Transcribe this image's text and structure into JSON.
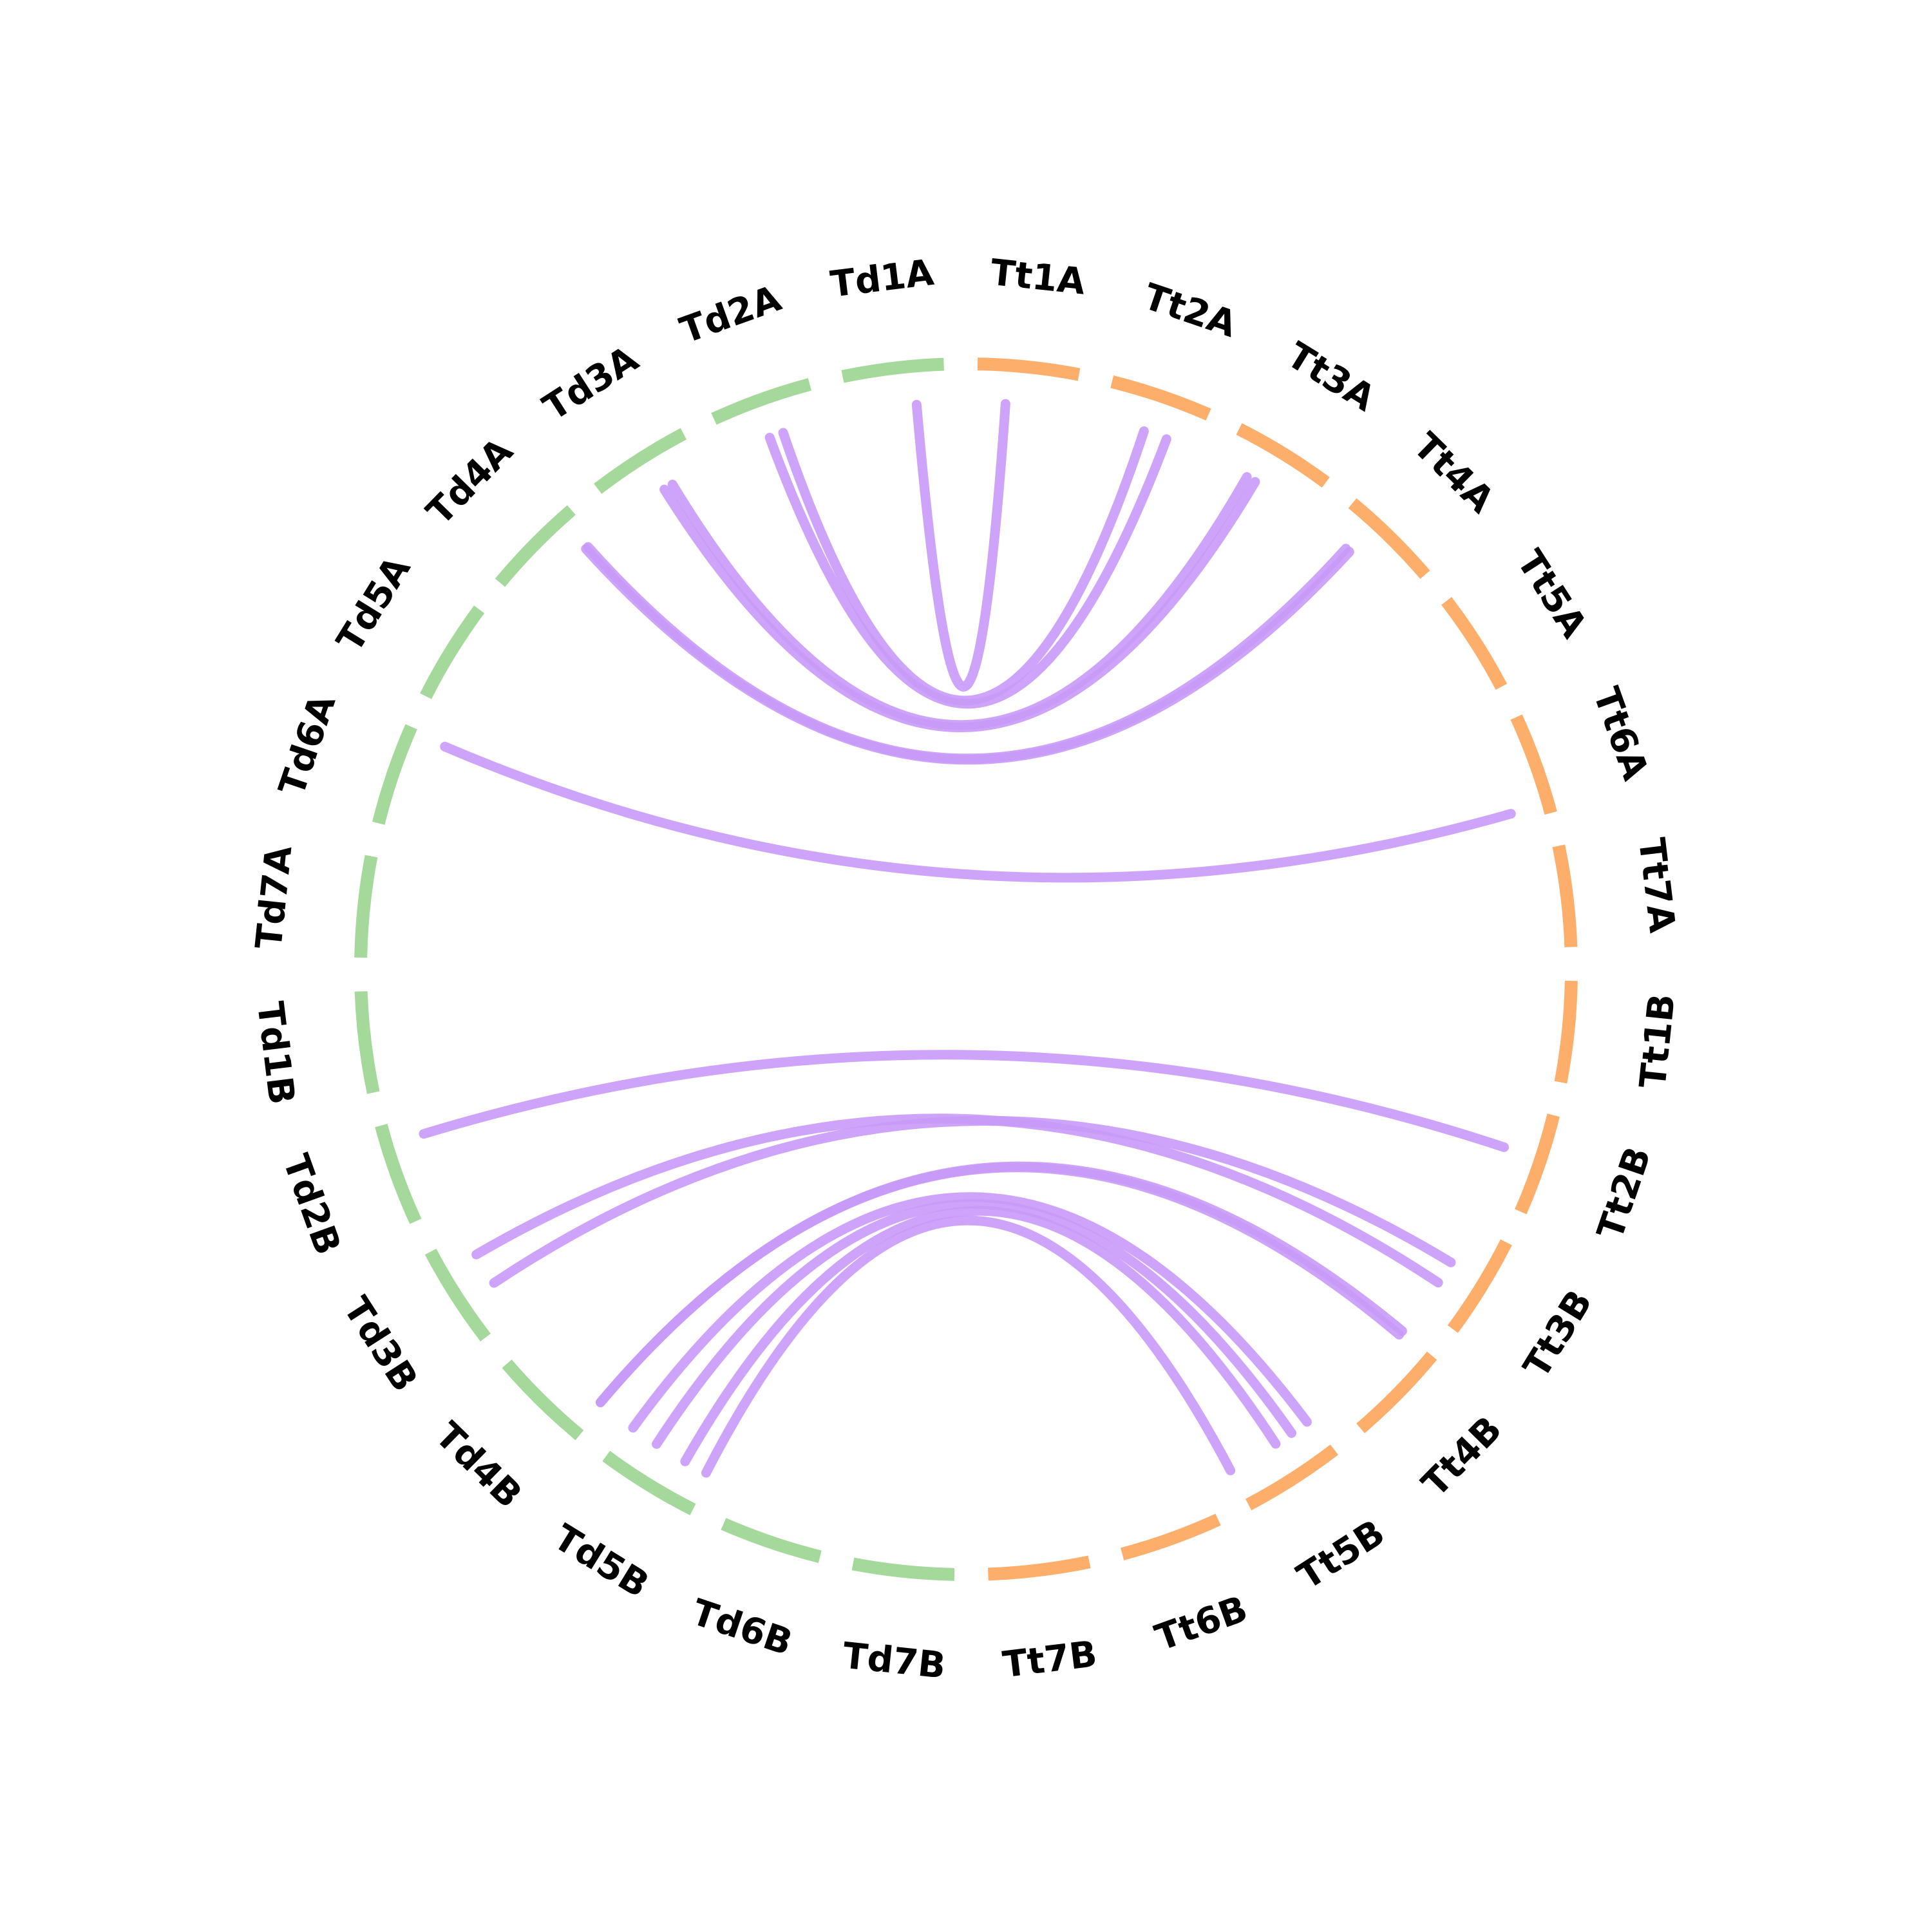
{
  "colors": {
    "group_Td": "#a5d99b",
    "group_Tt": "#fdae6b",
    "link": "#c89af8"
  },
  "chromosomes": [
    {
      "id": "Td1A",
      "group": "Td"
    },
    {
      "id": "Td2A",
      "group": "Td"
    },
    {
      "id": "Td3A",
      "group": "Td"
    },
    {
      "id": "Td4A",
      "group": "Td"
    },
    {
      "id": "Td5A",
      "group": "Td"
    },
    {
      "id": "Td6A",
      "group": "Td"
    },
    {
      "id": "Td7A",
      "group": "Td"
    },
    {
      "id": "Td1B",
      "group": "Td"
    },
    {
      "id": "Td2B",
      "group": "Td"
    },
    {
      "id": "Td3B",
      "group": "Td"
    },
    {
      "id": "Td4B",
      "group": "Td"
    },
    {
      "id": "Td5B",
      "group": "Td"
    },
    {
      "id": "Td6B",
      "group": "Td"
    },
    {
      "id": "Td7B",
      "group": "Td"
    },
    {
      "id": "Tt7B",
      "group": "Tt"
    },
    {
      "id": "Tt6B",
      "group": "Tt"
    },
    {
      "id": "Tt5B",
      "group": "Tt"
    },
    {
      "id": "Tt4B",
      "group": "Tt"
    },
    {
      "id": "Tt3B",
      "group": "Tt"
    },
    {
      "id": "Tt2B",
      "group": "Tt"
    },
    {
      "id": "Tt1B",
      "group": "Tt"
    },
    {
      "id": "Tt7A",
      "group": "Tt"
    },
    {
      "id": "Tt6A",
      "group": "Tt"
    },
    {
      "id": "Tt5A",
      "group": "Tt"
    },
    {
      "id": "Tt4A",
      "group": "Tt"
    },
    {
      "id": "Tt3A",
      "group": "Tt"
    },
    {
      "id": "Tt2A",
      "group": "Tt"
    },
    {
      "id": "Tt1A",
      "group": "Tt"
    }
  ],
  "links": [
    {
      "from": "Td1A",
      "from_pos": 0.3,
      "to": "Tt1A",
      "to_pos": 0.7
    },
    {
      "from": "Td2A",
      "from_pos": 0.55,
      "to": "Tt2A",
      "to_pos": 0.3
    },
    {
      "from": "Td2A",
      "from_pos": 0.4,
      "to": "Tt2A",
      "to_pos": 0.55
    },
    {
      "from": "Td3A",
      "from_pos": 0.35,
      "to": "Tt3A",
      "to_pos": 0.7
    },
    {
      "from": "Td3A",
      "from_pos": 0.45,
      "to": "Tt3A",
      "to_pos": 0.6
    },
    {
      "from": "Td4A",
      "from_pos": 0.15,
      "to": "Tt4A",
      "to_pos": 0.7
    },
    {
      "from": "Td4A",
      "from_pos": 0.12,
      "to": "Tt4A",
      "to_pos": 0.75
    },
    {
      "from": "Td6A",
      "from_pos": 0.05,
      "to": "Tt6A",
      "to_pos": 0.1
    },
    {
      "from": "Td2B",
      "from_pos": 0.2,
      "to": "Tt2B",
      "to_pos": 0.55
    },
    {
      "from": "Td3B",
      "from_pos": 0.25,
      "to": "Tt3B",
      "to_pos": 0.3
    },
    {
      "from": "Td3B",
      "from_pos": 0.6,
      "to": "Tt3B",
      "to_pos": 0.55
    },
    {
      "from": "Td4B",
      "from_pos": 0.95,
      "to": "Tt4B",
      "to_pos": 0.95
    },
    {
      "from": "Td4B",
      "from_pos": 0.95,
      "to": "Tt4B",
      "to_pos": 1.0
    },
    {
      "from": "Td5B",
      "from_pos": 0.05,
      "to": "Tt5B",
      "to_pos": 0.95
    },
    {
      "from": "Td5B",
      "from_pos": 0.35,
      "to": "Tt5B",
      "to_pos": 0.75
    },
    {
      "from": "Td5B",
      "from_pos": 0.7,
      "to": "Tt5B",
      "to_pos": 0.55
    },
    {
      "from": "Td5B",
      "from_pos": 0.95,
      "to": "Tt5B",
      "to_pos": 0.0
    }
  ]
}
